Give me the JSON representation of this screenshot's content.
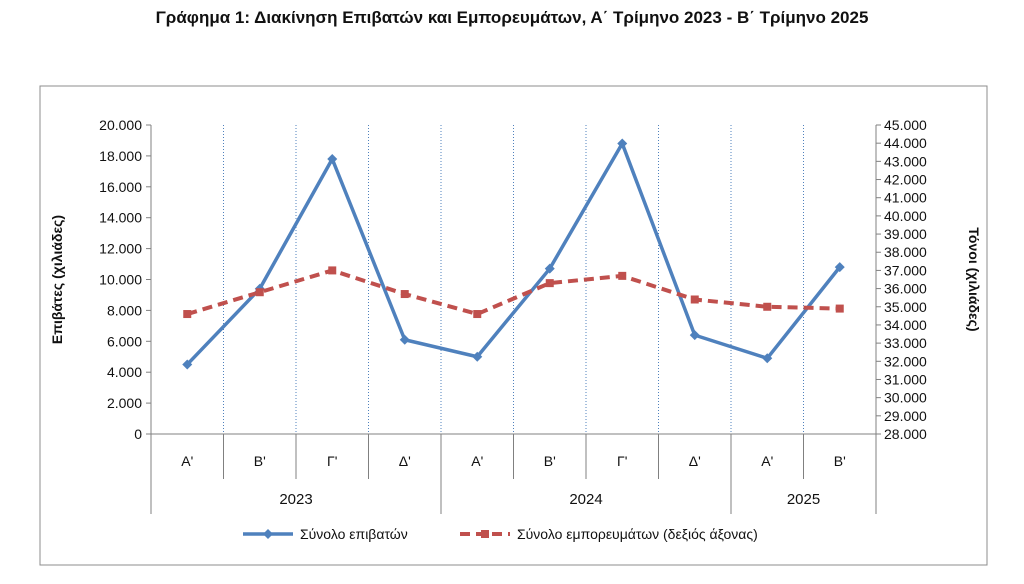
{
  "chart_data": {
    "type": "line",
    "title": "Γράφημα 1: Διακίνηση Επιβατών και Εμπορευμάτων, Α΄ Τρίμηνο 2023 - Β΄ Τρίμηνο 2025",
    "categories": [
      "Α'",
      "Β'",
      "Γ'",
      "Δ'",
      "Α'",
      "Β'",
      "Γ'",
      "Δ'",
      "Α'",
      "Β'"
    ],
    "year_groups": [
      {
        "label": "2023",
        "count": 4
      },
      {
        "label": "2024",
        "count": 4
      },
      {
        "label": "2025",
        "count": 2
      }
    ],
    "ylabel": "Επιβάτες  (χιλιάδες)",
    "y2label": "Τόνοι  (χιλιάδες)",
    "ylim": [
      0,
      20000
    ],
    "y2lim": [
      28000,
      45000
    ],
    "yticks": [
      "0",
      "2.000",
      "4.000",
      "6.000",
      "8.000",
      "10.000",
      "12.000",
      "14.000",
      "16.000",
      "18.000",
      "20.000"
    ],
    "y2ticks": [
      "28.000",
      "29.000",
      "30.000",
      "31.000",
      "32.000",
      "33.000",
      "34.000",
      "35.000",
      "36.000",
      "37.000",
      "38.000",
      "39.000",
      "40.000",
      "41.000",
      "42.000",
      "43.000",
      "44.000",
      "45.000"
    ],
    "grid": "vertical dotted",
    "legend_position": "bottom",
    "series": [
      {
        "name": "Σύνολο επιβατών",
        "axis": "left",
        "color": "#4f81bd",
        "style": "solid",
        "values": [
          4500,
          9400,
          17800,
          6100,
          5000,
          10700,
          18800,
          6400,
          4900,
          10800
        ]
      },
      {
        "name": "Σύνολο εμπορευμάτων (δεξιός άξονας)",
        "axis": "right",
        "color": "#c0504d",
        "style": "dashed",
        "values": [
          34600,
          35800,
          37000,
          35700,
          34600,
          36300,
          36700,
          35400,
          35000,
          34900
        ]
      }
    ]
  }
}
